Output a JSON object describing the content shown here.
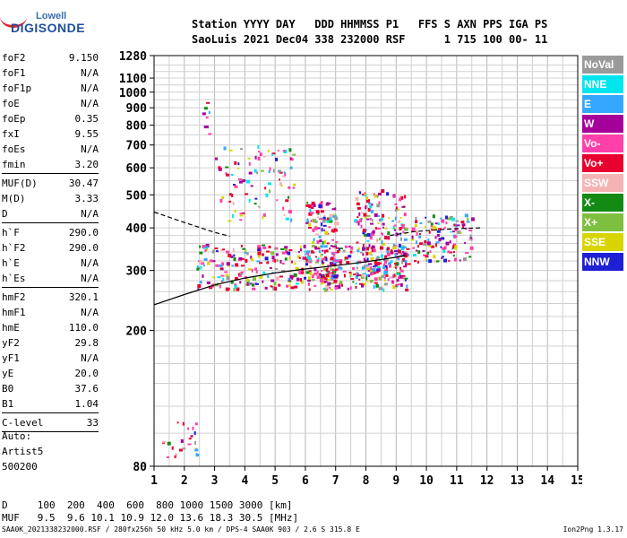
{
  "logo": {
    "top": "Lowell",
    "main": "DIGISONDE"
  },
  "header": {
    "line1": "Station YYYY DAY   DDD HHMMSS P1   FFS S AXN PPS IGA PS",
    "line2": "SaoLuis 2021 Dec04 338 232000 RSF      1 715 100 00- 11"
  },
  "params": [
    {
      "k": "foF2",
      "v": "9.150"
    },
    {
      "k": "foF1",
      "v": "N/A"
    },
    {
      "k": "foF1p",
      "v": "N/A"
    },
    {
      "k": "foE",
      "v": "N/A"
    },
    {
      "k": "foEp",
      "v": "0.35"
    },
    {
      "k": "fxI",
      "v": "9.55"
    },
    {
      "k": "foEs",
      "v": "N/A"
    },
    {
      "k": "fmin",
      "v": "3.20"
    },
    {
      "k": "MUF(D)",
      "v": "30.47"
    },
    {
      "k": "M(D)",
      "v": "3.33"
    },
    {
      "k": "D",
      "v": "N/A"
    },
    {
      "k": "h`F",
      "v": "290.0"
    },
    {
      "k": "h`F2",
      "v": "290.0"
    },
    {
      "k": "h`E",
      "v": "N/A"
    },
    {
      "k": "h`Es",
      "v": "N/A"
    },
    {
      "k": "hmF2",
      "v": "320.1"
    },
    {
      "k": "hmF1",
      "v": "N/A"
    },
    {
      "k": "hmE",
      "v": "110.0"
    },
    {
      "k": "yF2",
      "v": "29.8"
    },
    {
      "k": "yF1",
      "v": "N/A"
    },
    {
      "k": "yE",
      "v": "20.0"
    },
    {
      "k": "B0",
      "v": "37.6"
    },
    {
      "k": "B1",
      "v": "1.04"
    },
    {
      "k": "C-level",
      "v": "33"
    }
  ],
  "auto": {
    "label": "Auto:",
    "artist": "Artist5",
    "version": "500200"
  },
  "legend": [
    {
      "label": "NoVal",
      "color": "#9a9a9a"
    },
    {
      "label": "NNE",
      "color": "#00e5ee"
    },
    {
      "label": "E",
      "color": "#35a7ff"
    },
    {
      "label": "W",
      "color": "#a6009a"
    },
    {
      "label": "Vo-",
      "color": "#ff40a8"
    },
    {
      "label": "Vo+",
      "color": "#e8002e"
    },
    {
      "label": "SSW",
      "color": "#f4b4b4"
    },
    {
      "label": "X-",
      "color": "#138a13"
    },
    {
      "label": "X+",
      "color": "#7fbf3f"
    },
    {
      "label": "SSE",
      "color": "#d8d400"
    },
    {
      "label": "NNW",
      "color": "#1f1fd6"
    }
  ],
  "bottom": {
    "d_line": "D     100  200  400  600  800 1000 1500 3000 [km]",
    "muf_line": "MUF   9.5  9.6 10.1 10.9 12.0 13.6 18.3 30.5 [MHz]",
    "footer": "SAA0K_2021338232000.RSF / 280fx256h 50 kHz 5.0 km / DPS-4 SAA0K 903 / 2.6 S 315.8 E",
    "program": "Ion2Png 1.3.17"
  },
  "chart_data": {
    "type": "scatter",
    "xlabel": "",
    "ylabel": "",
    "xlim": [
      1,
      15
    ],
    "ylim": [
      80,
      1280
    ],
    "x_ticks": [
      "1",
      "2",
      "3",
      "4",
      "5",
      "6",
      "7",
      "8",
      "9",
      "10",
      "11",
      "12",
      "13",
      "14",
      "15"
    ],
    "y_ticks": [
      {
        "v": 80,
        "label": "80"
      },
      {
        "v": 200,
        "label": "200"
      },
      {
        "v": 300,
        "label": "300"
      },
      {
        "v": 400,
        "label": "400"
      },
      {
        "v": 500,
        "label": "500"
      },
      {
        "v": 600,
        "label": "600"
      },
      {
        "v": 700,
        "label": "700"
      },
      {
        "v": 800,
        "label": "800"
      },
      {
        "v": 900,
        "label": "900"
      },
      {
        "v": 1000,
        "label": "1000"
      },
      {
        "v": 1100,
        "label": "1100"
      },
      {
        "v": 1280,
        "label": "1280"
      }
    ],
    "y_scale": "log",
    "grid": true,
    "echo_regions": [
      {
        "x": [
          2.4,
          9.4
        ],
        "y": [
          265,
          360
        ],
        "density": 420
      },
      {
        "x": [
          6.0,
          7.0
        ],
        "y": [
          280,
          480
        ],
        "density": 140
      },
      {
        "x": [
          7.6,
          9.3
        ],
        "y": [
          280,
          520
        ],
        "density": 200
      },
      {
        "x": [
          9.5,
          11.5
        ],
        "y": [
          320,
          440
        ],
        "density": 120
      },
      {
        "x": [
          3.0,
          5.6
        ],
        "y": [
          420,
          700
        ],
        "density": 90
      },
      {
        "x": [
          1.2,
          2.4
        ],
        "y": [
          80,
          110
        ],
        "density": 25
      },
      {
        "x": [
          2.5,
          2.8
        ],
        "y": [
          700,
          1010
        ],
        "density": 8
      }
    ],
    "traces": [
      {
        "name": "",
        "style": "solid",
        "points": [
          [
            1,
            238
          ],
          [
            2,
            255
          ],
          [
            3,
            272
          ],
          [
            4,
            285
          ],
          [
            5,
            295
          ],
          [
            6,
            303
          ],
          [
            7,
            310
          ],
          [
            8,
            318
          ],
          [
            9,
            328
          ],
          [
            9.3,
            332
          ]
        ]
      },
      {
        "name": "",
        "style": "dashed",
        "points": [
          [
            1,
            445
          ],
          [
            2,
            415
          ],
          [
            3,
            388
          ],
          [
            3.5,
            378
          ]
        ]
      },
      {
        "name": "",
        "style": "dashed",
        "points": [
          [
            8.8,
            380
          ],
          [
            9.6,
            390
          ],
          [
            10.4,
            395
          ],
          [
            11.0,
            398
          ],
          [
            11.8,
            400
          ]
        ]
      }
    ]
  }
}
